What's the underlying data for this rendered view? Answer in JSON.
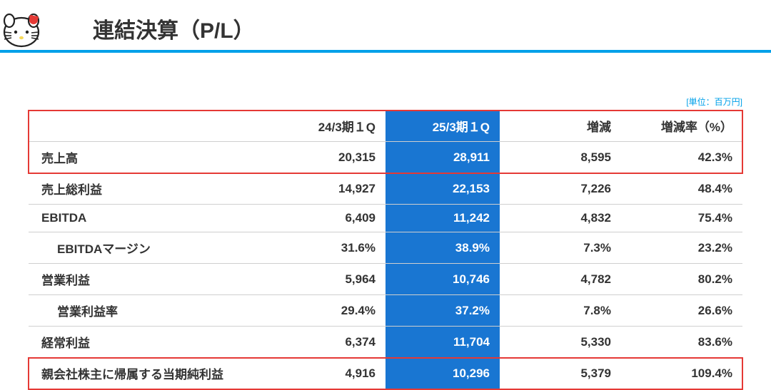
{
  "title": "連結決算（P/L）",
  "unit_label": "[単位：百万円]",
  "columns": {
    "label": "",
    "a": "24/3期１Q",
    "b": "25/3期１Q",
    "c": "増減",
    "d": "増減率（%）"
  },
  "rows": [
    {
      "label": "売上高",
      "indent": false,
      "a": "20,315",
      "b": "28,911",
      "c": "8,595",
      "d": "42.3%"
    },
    {
      "label": "売上総利益",
      "indent": false,
      "a": "14,927",
      "b": "22,153",
      "c": "7,226",
      "d": "48.4%"
    },
    {
      "label": "EBITDA",
      "indent": false,
      "a": "6,409",
      "b": "11,242",
      "c": "4,832",
      "d": "75.4%"
    },
    {
      "label": "EBITDAマージン",
      "indent": true,
      "a": "31.6%",
      "b": "38.9%",
      "c": "7.3%",
      "d": "23.2%"
    },
    {
      "label": "営業利益",
      "indent": false,
      "a": "5,964",
      "b": "10,746",
      "c": "4,782",
      "d": "80.2%"
    },
    {
      "label": "営業利益率",
      "indent": true,
      "a": "29.4%",
      "b": "37.2%",
      "c": "7.8%",
      "d": "26.6%"
    },
    {
      "label": "経常利益",
      "indent": false,
      "a": "6,374",
      "b": "11,704",
      "c": "5,330",
      "d": "83.6%"
    },
    {
      "label": "親会社株主に帰属する当期純利益",
      "indent": false,
      "a": "4,916",
      "b": "10,296",
      "c": "5,379",
      "d": "109.4%"
    }
  ],
  "colors": {
    "accent_rule": "#00a0e9",
    "highlight_col_bg": "#1976d2",
    "highlight_col_fg": "#ffffff",
    "red_box": "#e53935",
    "border": "#cfcfcf",
    "text": "#333333"
  },
  "red_boxes": [
    {
      "top_row": "header",
      "bottom_row": 0
    },
    {
      "top_row": 7,
      "bottom_row": 7
    }
  ]
}
